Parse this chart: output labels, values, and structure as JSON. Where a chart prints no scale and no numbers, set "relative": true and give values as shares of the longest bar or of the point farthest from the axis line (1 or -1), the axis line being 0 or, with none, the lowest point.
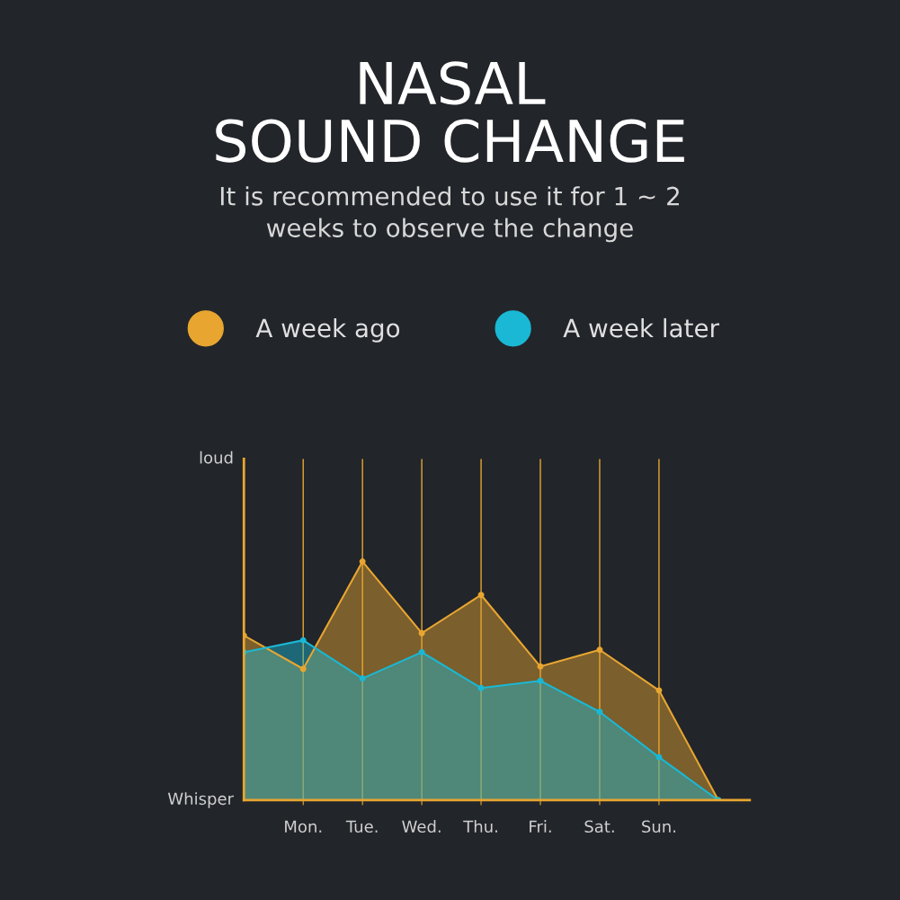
{
  "chart_data": {
    "type": "area",
    "title": "NASAL\nSOUND CHANGE",
    "subtitle": "It is recommended to use it for 1 ~ 2\nweeks to observe the change",
    "relative": true,
    "categories": [
      null,
      "Mon.",
      "Tue.",
      "Wed.",
      "Thu.",
      "Fri.",
      "Sat.",
      "Sun.",
      null
    ],
    "series": [
      {
        "name": "A week ago",
        "color": "#e8a631",
        "values": [
          0.69,
          0.55,
          1,
          0.7,
          0.86,
          0.56,
          0.63,
          0.46,
          0
        ]
      },
      {
        "name": "A week later",
        "color": "#1ab8d4",
        "values": [
          0.62,
          0.67,
          0.51,
          0.62,
          0.47,
          0.5,
          0.37,
          0.18,
          0
        ]
      }
    ],
    "annotations": [
      "loud",
      "Whisper"
    ],
    "grid": "x",
    "legend": "top",
    "marker": "circle"
  }
}
